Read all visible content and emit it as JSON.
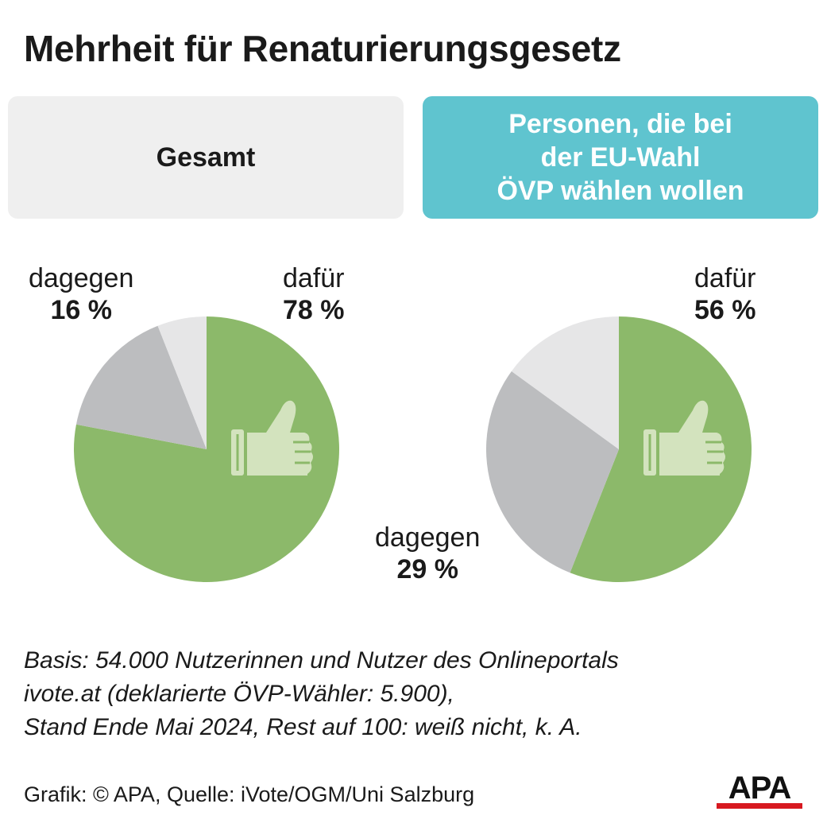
{
  "title": "Mehrheit für Renaturierungsgesetz",
  "panels": {
    "left": "Gesamt",
    "right": "Personen, die bei\nder EU-Wahl\nÖVP wählen wollen"
  },
  "colors": {
    "dafuer": "#8cb96a",
    "dagegen": "#bcbdbf",
    "rest": "#e6e6e7",
    "thumb": "#d3e3be",
    "panel_left": "#efefef",
    "panel_right": "#5fc4cf"
  },
  "chart_data": [
    {
      "type": "pie",
      "title": "Gesamt",
      "slices": [
        {
          "label": "dafür",
          "display": "78 %",
          "value": 78
        },
        {
          "label": "dagegen",
          "display": "16 %",
          "value": 16
        },
        {
          "label": "",
          "display": "",
          "value": 6
        }
      ],
      "icon": "thumbs-up-icon"
    },
    {
      "type": "pie",
      "title": "Personen, die bei der EU-Wahl ÖVP wählen wollen",
      "slices": [
        {
          "label": "dafür",
          "display": "56 %",
          "value": 56
        },
        {
          "label": "dagegen",
          "display": "29 %",
          "value": 29
        },
        {
          "label": "",
          "display": "",
          "value": 15
        }
      ],
      "icon": "thumbs-up-icon"
    }
  ],
  "note_lines": [
    "Basis: 54.000 Nutzerinnen und Nutzer des Onlineportals",
    "ivote.at (deklarierte ÖVP-Wähler: 5.900),",
    "Stand Ende Mai 2024, Rest auf 100: weiß nicht, k. A."
  ],
  "credit": "Grafik: © APA, Quelle: iVote/OGM/Uni Salzburg",
  "logo_text": "APA"
}
